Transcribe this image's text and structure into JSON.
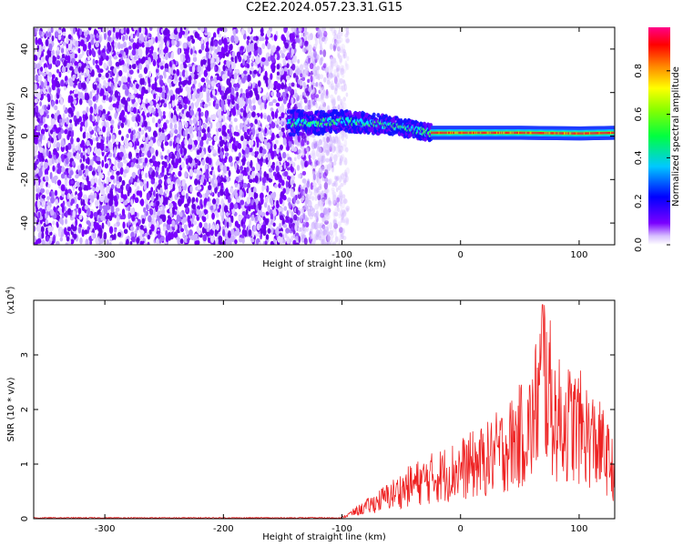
{
  "title": "C2E2.2024.057.23.31.G15",
  "chart_data": [
    {
      "type": "heatmap",
      "xlabel": "Height of straight line (km)",
      "ylabel": "Frequency (Hz)",
      "xlim": [
        -360,
        130
      ],
      "ylim": [
        -50,
        50
      ],
      "xticks": [
        -300,
        -200,
        -100,
        0,
        100
      ],
      "yticks": [
        -40,
        -20,
        0,
        20,
        40
      ],
      "colorbar": {
        "label": "Normalized spectral amplitude",
        "range": [
          0,
          1
        ],
        "ticks": [
          0.0,
          0.2,
          0.4,
          0.6,
          0.8
        ]
      },
      "ridge": {
        "description_x": [
          -145,
          -120,
          -100,
          -80,
          -60,
          -40,
          -25,
          0,
          50,
          100,
          130
        ],
        "center_freq_hz": [
          6,
          6,
          7,
          6,
          5,
          3,
          1.5,
          1.5,
          1.5,
          1.2,
          1.5
        ],
        "peak_amplitude": [
          0.35,
          0.4,
          0.45,
          0.5,
          0.5,
          0.55,
          0.9,
          0.9,
          0.9,
          0.9,
          0.9
        ]
      }
    },
    {
      "type": "line",
      "xlabel": "Height of straight line (km)",
      "ylabel": "SNR (10 * v/v)",
      "y_multiplier_label": "(x10",
      "y_multiplier_exp": "4",
      "xlim": [
        -360,
        130
      ],
      "ylim": [
        0,
        4
      ],
      "xticks": [
        -300,
        -200,
        -100,
        0,
        100
      ],
      "yticks": [
        0,
        1,
        2,
        3
      ],
      "color": "#ee2222",
      "envelope": {
        "x": [
          -360,
          -100,
          -80,
          -60,
          -40,
          -20,
          0,
          20,
          40,
          60,
          70,
          80,
          100,
          120,
          130
        ],
        "y": [
          0.02,
          0.03,
          0.3,
          0.6,
          0.9,
          1.1,
          1.3,
          1.5,
          1.9,
          2.4,
          3.9,
          2.6,
          2.4,
          1.8,
          1.2
        ]
      }
    }
  ]
}
